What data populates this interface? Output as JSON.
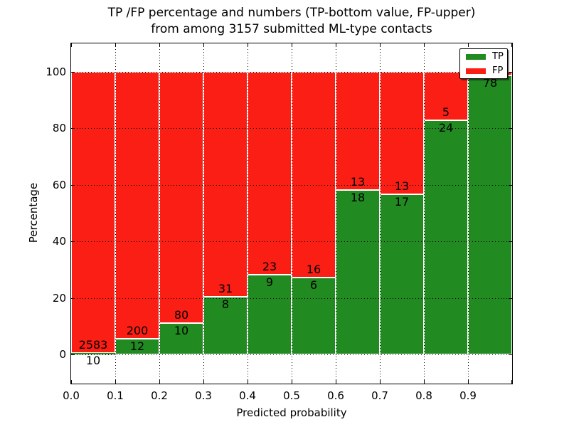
{
  "figure": {
    "title_line1": "TP /FP percentage and numbers (TP-bottom value, FP-upper)",
    "title_line2": "from among 3157 submitted ML-type contacts",
    "xlabel": "Predicted probability",
    "ylabel": "Percentage"
  },
  "legend": {
    "position": "upper-right",
    "items": [
      {
        "label": "TP",
        "color": "#218a21"
      },
      {
        "label": "FP",
        "color": "#fb1e15"
      }
    ]
  },
  "chart_data": {
    "type": "bar",
    "stacked": true,
    "normalized_to_percent": true,
    "title": "TP /FP percentage and numbers (TP-bottom value, FP-upper) from among 3157 submitted ML-type contacts",
    "total_contacts_in_title": 3157,
    "xlabel": "Predicted probability",
    "ylabel": "Percentage",
    "categories": [
      "0.0-0.1",
      "0.1-0.2",
      "0.2-0.3",
      "0.3-0.4",
      "0.4-0.5",
      "0.5-0.6",
      "0.6-0.7",
      "0.7-0.8",
      "0.8-0.9",
      "0.9-1.0"
    ],
    "series": [
      {
        "name": "TP",
        "color": "#218a21",
        "counts": [
          10,
          12,
          10,
          8,
          9,
          6,
          18,
          17,
          24,
          78
        ]
      },
      {
        "name": "FP",
        "color": "#fb1e15",
        "counts": [
          2583,
          200,
          80,
          31,
          23,
          16,
          13,
          13,
          5,
          1
        ]
      }
    ],
    "tp_percent": [
      0.39,
      5.66,
      11.11,
      20.51,
      28.13,
      27.27,
      58.06,
      56.67,
      82.76,
      98.73
    ],
    "x_tick_labels": [
      "0.0",
      "0.1",
      "0.2",
      "0.3",
      "0.4",
      "0.5",
      "0.6",
      "0.7",
      "0.8",
      "0.9"
    ],
    "y_tick_values": [
      0,
      20,
      40,
      60,
      80,
      100
    ],
    "xlim": [
      0.0,
      1.0
    ],
    "ylim": [
      -10.6,
      110.1
    ],
    "grid": "dotted",
    "legend_position": "upper-right",
    "bar_edge_color": "#ffffff"
  }
}
